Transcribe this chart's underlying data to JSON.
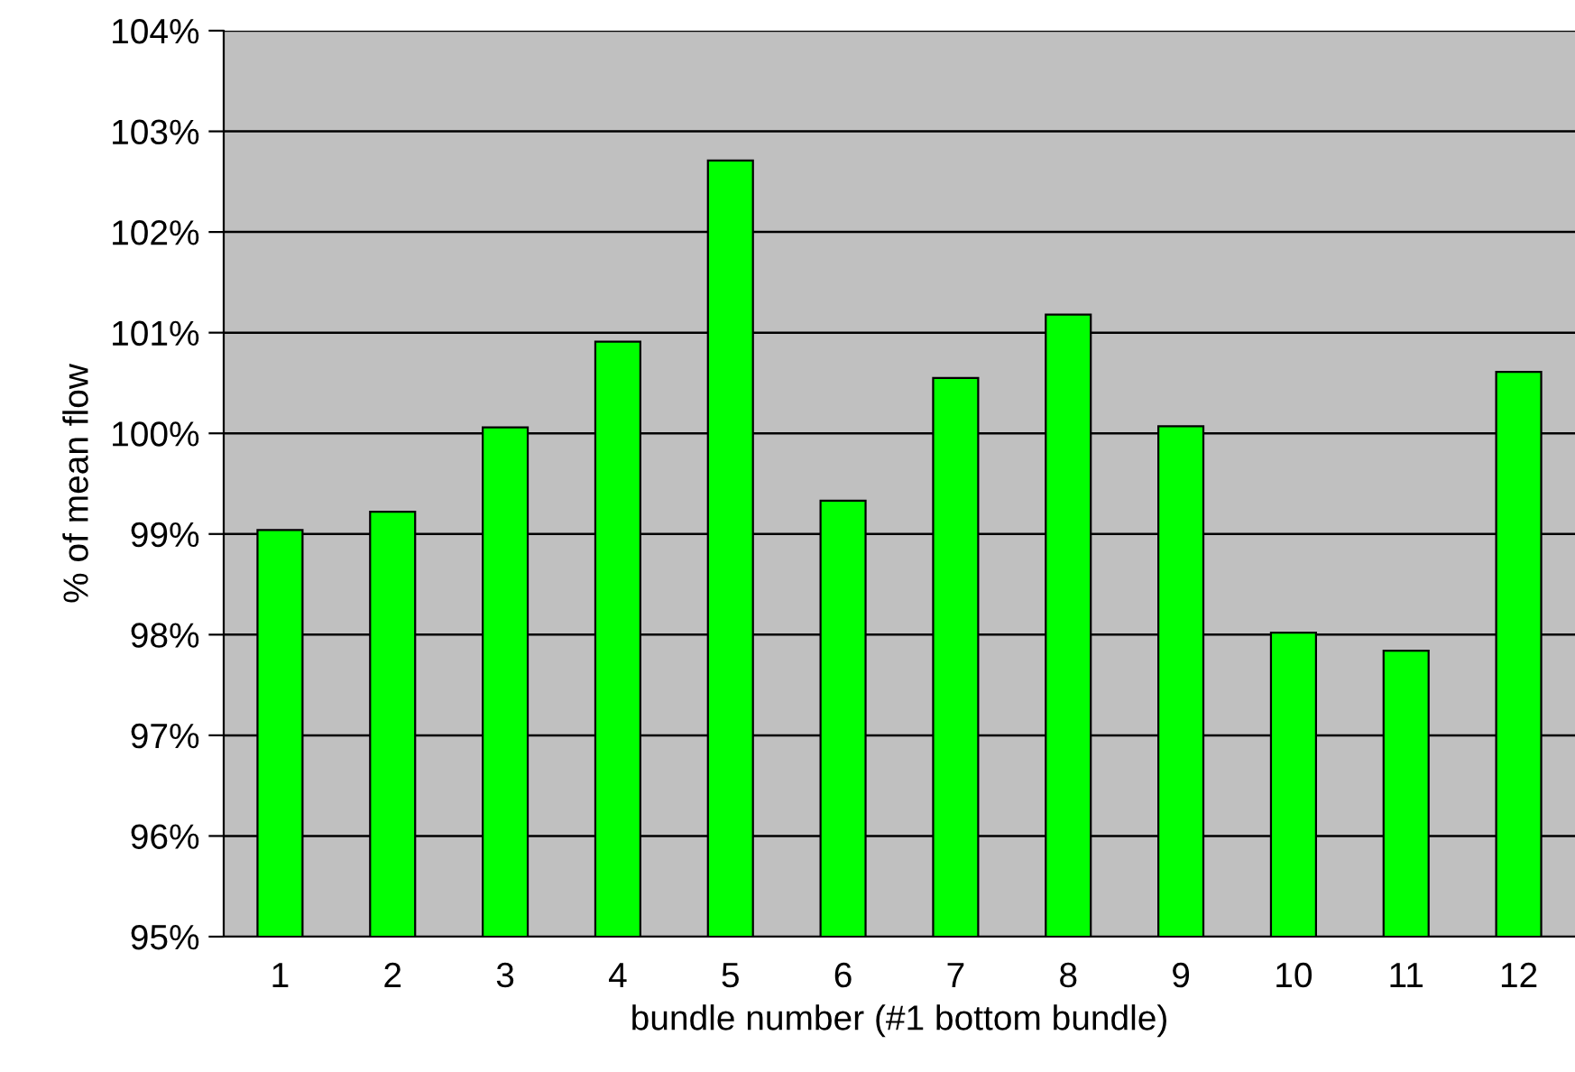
{
  "chart_data": {
    "type": "bar",
    "xlabel": "bundle number (#1 bottom bundle)",
    "ylabel": "% of mean flow",
    "categories": [
      "1",
      "2",
      "3",
      "4",
      "5",
      "6",
      "7",
      "8",
      "9",
      "10",
      "11",
      "12"
    ],
    "values": [
      99.04,
      99.22,
      100.06,
      100.91,
      102.71,
      99.33,
      100.55,
      101.18,
      100.07,
      98.02,
      97.84,
      100.61
    ],
    "color": "#00ff00",
    "ylim": [
      95,
      104
    ],
    "yticks": [
      {
        "value": 95,
        "label": "95%"
      },
      {
        "value": 96,
        "label": "96%"
      },
      {
        "value": 97,
        "label": "97%"
      },
      {
        "value": 98,
        "label": "98%"
      },
      {
        "value": 99,
        "label": "99%"
      },
      {
        "value": 100,
        "label": "100%"
      },
      {
        "value": 101,
        "label": "101%"
      },
      {
        "value": 102,
        "label": "102%"
      },
      {
        "value": 103,
        "label": "103%"
      },
      {
        "value": 104,
        "label": "104%"
      }
    ],
    "grid": "y"
  }
}
